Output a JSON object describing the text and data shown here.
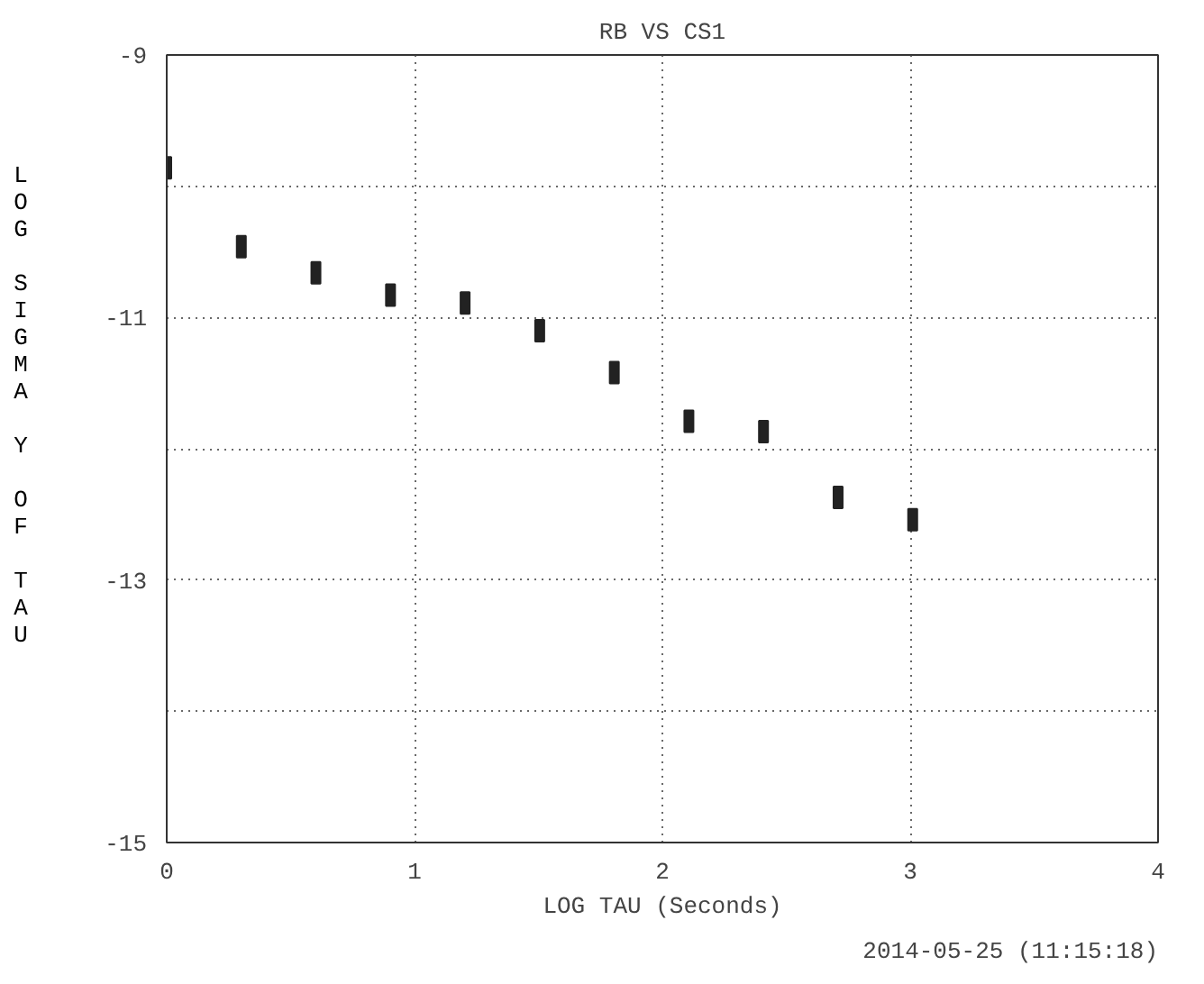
{
  "chart_data": {
    "type": "scatter",
    "title": "RB VS CS1",
    "xlabel": "LOG TAU (Seconds)",
    "ylabel": "LOG SIGMA Y OF TAU",
    "annotations": [
      "2014-05-25 (11:15:18)"
    ],
    "x": [
      0,
      0.301,
      0.602,
      0.903,
      1.204,
      1.505,
      1.806,
      2.107,
      2.408,
      2.709,
      3.01
    ],
    "values": [
      -9.86,
      -10.46,
      -10.66,
      -10.83,
      -10.89,
      -11.1,
      -11.42,
      -11.79,
      -11.87,
      -12.37,
      -12.54
    ],
    "color": "#222222",
    "xlim": [
      0,
      4
    ],
    "ylim": [
      -15,
      -9
    ],
    "xticks": [
      0,
      1,
      2,
      3,
      4
    ],
    "yticks": [
      -15,
      {
        "value": -14,
        "label": null
      },
      -13,
      {
        "value": -12,
        "label": null
      },
      -11,
      {
        "value": -10,
        "label": null
      },
      -9
    ],
    "grid": true
  }
}
